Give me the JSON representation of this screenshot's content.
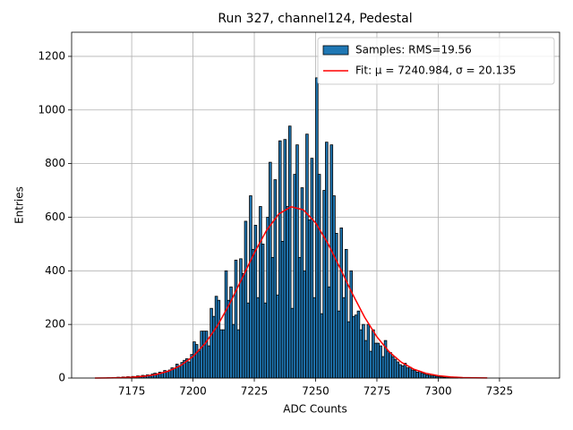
{
  "chart_data": {
    "type": "histogram",
    "title": "Run 327, channel124, Pedestal",
    "xlabel": "ADC Counts",
    "ylabel": "Entries",
    "xlim": [
      7150.5,
      7349.5
    ],
    "ylim": [
      0,
      1290
    ],
    "xticks": [
      7175,
      7200,
      7225,
      7250,
      7275,
      7300,
      7325
    ],
    "yticks": [
      0,
      200,
      400,
      600,
      800,
      1000,
      1200
    ],
    "grid": true,
    "legend": "upper right",
    "series": [
      {
        "name": "Samples: RMS=19.56",
        "type": "histogram",
        "color": "#1f77b4",
        "edgecolor": "#000000",
        "bins": [
          7160,
          7161,
          7162,
          7163,
          7164,
          7165,
          7166,
          7167,
          7168,
          7169,
          7170,
          7171,
          7172,
          7173,
          7174,
          7175,
          7176,
          7177,
          7178,
          7179,
          7180,
          7181,
          7182,
          7183,
          7184,
          7185,
          7186,
          7187,
          7188,
          7189,
          7190,
          7191,
          7192,
          7193,
          7194,
          7195,
          7196,
          7197,
          7198,
          7199,
          7200,
          7201,
          7202,
          7203,
          7204,
          7205,
          7206,
          7207,
          7208,
          7209,
          7210,
          7211,
          7212,
          7213,
          7214,
          7215,
          7216,
          7217,
          7218,
          7219,
          7220,
          7221,
          7222,
          7223,
          7224,
          7225,
          7226,
          7227,
          7228,
          7229,
          7230,
          7231,
          7232,
          7233,
          7234,
          7235,
          7236,
          7237,
          7238,
          7239,
          7240,
          7241,
          7242,
          7243,
          7244,
          7245,
          7246,
          7247,
          7248,
          7249,
          7250,
          7251,
          7252,
          7253,
          7254,
          7255,
          7256,
          7257,
          7258,
          7259,
          7260,
          7261,
          7262,
          7263,
          7264,
          7265,
          7266,
          7267,
          7268,
          7269,
          7270,
          7271,
          7272,
          7273,
          7274,
          7275,
          7276,
          7277,
          7278,
          7279,
          7280,
          7281,
          7282,
          7283,
          7284,
          7285,
          7286,
          7287,
          7288,
          7289,
          7290,
          7291,
          7292,
          7293,
          7294,
          7295,
          7296,
          7297,
          7298,
          7299,
          7300,
          7301,
          7302,
          7303,
          7304,
          7305,
          7306,
          7307,
          7308,
          7309,
          7310
        ],
        "values": [
          0,
          0,
          0,
          0,
          0,
          1,
          0,
          2,
          1,
          3,
          2,
          4,
          3,
          5,
          4,
          6,
          5,
          8,
          7,
          10,
          9,
          12,
          8,
          15,
          18,
          16,
          22,
          20,
          28,
          25,
          30,
          38,
          35,
          52,
          44,
          58,
          66,
          72,
          60,
          88,
          135,
          125,
          100,
          175,
          175,
          175,
          120,
          260,
          230,
          305,
          290,
          180,
          180,
          400,
          290,
          340,
          200,
          440,
          180,
          445,
          390,
          585,
          280,
          680,
          480,
          570,
          300,
          640,
          500,
          280,
          600,
          805,
          450,
          740,
          310,
          885,
          510,
          890,
          640,
          940,
          260,
          760,
          870,
          450,
          710,
          400,
          910,
          590,
          820,
          300,
          1120,
          760,
          240,
          700,
          880,
          340,
          870,
          680,
          540,
          250,
          560,
          300,
          480,
          210,
          400,
          230,
          235,
          250,
          180,
          200,
          140,
          200,
          100,
          180,
          130,
          130,
          120,
          80,
          140,
          100,
          95,
          80,
          70,
          60,
          50,
          45,
          55,
          38,
          40,
          30,
          28,
          22,
          25,
          18,
          15,
          12,
          10,
          8,
          9,
          6,
          5,
          4,
          3,
          4,
          2,
          2,
          1,
          1,
          0,
          1
        ]
      },
      {
        "name": "Fit: μ = 7240.984, σ = 20.135",
        "type": "line",
        "color": "#ff0000",
        "x": [
          7160,
          7165,
          7170,
          7175,
          7180,
          7185,
          7190,
          7195,
          7200,
          7205,
          7210,
          7215,
          7220,
          7225,
          7230,
          7235,
          7240,
          7245,
          7250,
          7255,
          7260,
          7265,
          7270,
          7275,
          7280,
          7285,
          7290,
          7295,
          7300,
          7305,
          7310,
          7315,
          7320
        ],
        "values": [
          0.2,
          0.5,
          1.3,
          3.0,
          6.5,
          13.4,
          25.9,
          47,
          80.5,
          129.5,
          195.6,
          278,
          371.5,
          466.6,
          551,
          612,
          639,
          627.5,
          579,
          502.6,
          410,
          314.5,
          226.9,
          153.8,
          98,
          58.7,
          33.2,
          17.6,
          8.8,
          4.1,
          1.8,
          0.7,
          0.3
        ]
      }
    ]
  }
}
